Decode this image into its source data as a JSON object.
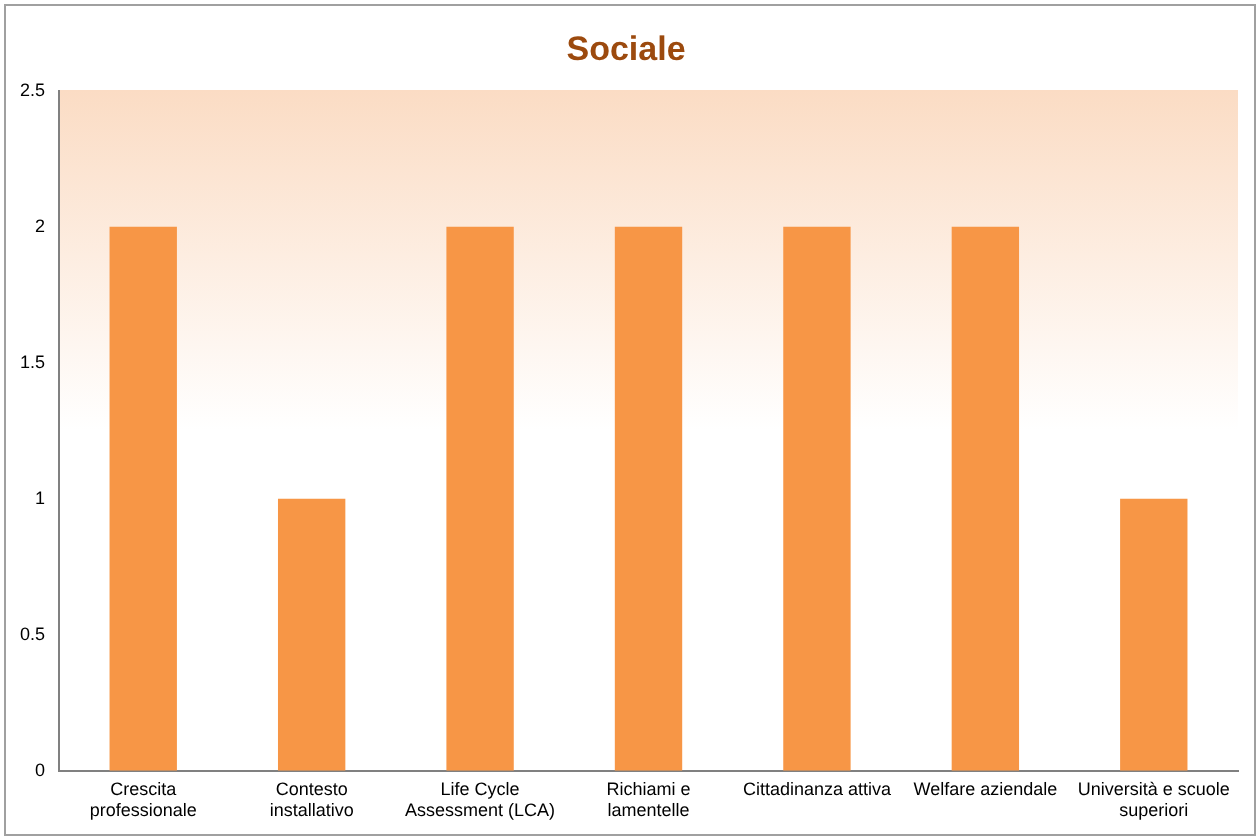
{
  "chart_data": {
    "type": "bar",
    "title": "Sociale",
    "categories": [
      "Crescita professionale",
      "Contesto installativo",
      "Life Cycle Assessment (LCA)",
      "Richiami e lamentelle",
      "Cittadinanza attiva",
      "Welfare aziendale",
      "Università e scuole superiori"
    ],
    "values": [
      2,
      1,
      2,
      2,
      2,
      2,
      1
    ],
    "color": "#f79646",
    "ylim": [
      0,
      2.5
    ],
    "yticks": [
      0,
      0.5,
      1,
      1.5,
      2,
      2.5
    ],
    "grid": false,
    "legend": false
  }
}
